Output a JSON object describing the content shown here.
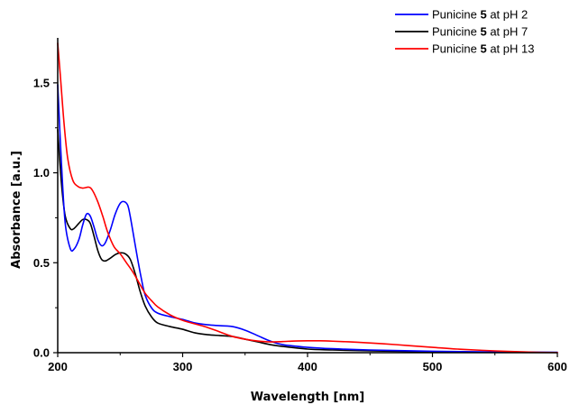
{
  "chart_data": {
    "type": "line",
    "xlabel": "Wavelength [nm]",
    "ylabel": "Absorbance [a.u.]",
    "xlim": [
      200,
      600
    ],
    "ylim": [
      0.0,
      1.75
    ],
    "x_ticks": [
      200,
      300,
      400,
      500,
      600
    ],
    "x_tick_labels": [
      "200",
      "300",
      "400",
      "500",
      "600"
    ],
    "y_ticks": [
      0.0,
      0.5,
      1.0,
      1.5
    ],
    "y_tick_labels": [
      "0.0",
      "0.5",
      "1.0",
      "1.5"
    ],
    "grid": false,
    "legend_position": "top-right",
    "series": [
      {
        "name": "Punicine 5 at pH 2",
        "legend_prefix": "Punicine ",
        "legend_bold": "5",
        "legend_suffix": " at pH 2",
        "color": "#0000ff",
        "x": [
          200,
          203,
          206,
          210,
          213,
          217,
          220,
          223,
          226,
          229,
          232,
          235,
          238,
          242,
          246,
          250,
          253,
          256,
          258,
          261,
          264,
          267,
          270,
          275,
          280,
          290,
          300,
          310,
          320,
          330,
          340,
          350,
          360,
          370,
          380,
          400,
          420,
          450,
          500,
          550,
          600
        ],
        "y": [
          1.49,
          1.05,
          0.72,
          0.58,
          0.575,
          0.63,
          0.71,
          0.77,
          0.76,
          0.7,
          0.63,
          0.595,
          0.61,
          0.68,
          0.77,
          0.83,
          0.84,
          0.82,
          0.76,
          0.64,
          0.52,
          0.41,
          0.32,
          0.25,
          0.22,
          0.2,
          0.185,
          0.165,
          0.155,
          0.15,
          0.145,
          0.125,
          0.095,
          0.065,
          0.045,
          0.03,
          0.022,
          0.015,
          0.008,
          0.004,
          0.002
        ]
      },
      {
        "name": "Punicine 5 at pH 7",
        "legend_prefix": "Punicine ",
        "legend_bold": "5",
        "legend_suffix": " at pH 7",
        "color": "#000000",
        "x": [
          200,
          203,
          206,
          210,
          213,
          217,
          220,
          223,
          226,
          229,
          232,
          235,
          238,
          242,
          246,
          250,
          254,
          258,
          262,
          266,
          270,
          275,
          280,
          290,
          300,
          310,
          320,
          330,
          340,
          350,
          360,
          370,
          380,
          400,
          420,
          450,
          500,
          550,
          600
        ],
        "y": [
          1.24,
          0.94,
          0.76,
          0.69,
          0.69,
          0.72,
          0.74,
          0.74,
          0.72,
          0.65,
          0.57,
          0.52,
          0.51,
          0.525,
          0.545,
          0.555,
          0.55,
          0.52,
          0.44,
          0.34,
          0.26,
          0.2,
          0.165,
          0.145,
          0.13,
          0.11,
          0.1,
          0.095,
          0.09,
          0.075,
          0.06,
          0.045,
          0.035,
          0.02,
          0.015,
          0.01,
          0.005,
          0.002,
          0.001
        ]
      },
      {
        "name": "Punicine 5 at pH 13",
        "legend_prefix": "Punicine ",
        "legend_bold": "5",
        "legend_suffix": " at pH 13",
        "color": "#ff0000",
        "x": [
          200,
          202,
          205,
          208,
          212,
          216,
          220,
          225,
          228,
          232,
          236,
          240,
          245,
          250,
          255,
          260,
          265,
          270,
          275,
          280,
          290,
          300,
          310,
          320,
          330,
          340,
          350,
          360,
          370,
          380,
          390,
          400,
          410,
          420,
          440,
          460,
          480,
          500,
          520,
          550,
          580,
          600
        ],
        "y": [
          1.72,
          1.55,
          1.28,
          1.08,
          0.96,
          0.925,
          0.915,
          0.92,
          0.9,
          0.84,
          0.76,
          0.67,
          0.59,
          0.55,
          0.5,
          0.45,
          0.39,
          0.33,
          0.29,
          0.255,
          0.21,
          0.18,
          0.16,
          0.14,
          0.115,
          0.09,
          0.075,
          0.065,
          0.06,
          0.062,
          0.065,
          0.066,
          0.066,
          0.064,
          0.058,
          0.05,
          0.04,
          0.03,
          0.02,
          0.01,
          0.003,
          0.001
        ]
      }
    ]
  }
}
